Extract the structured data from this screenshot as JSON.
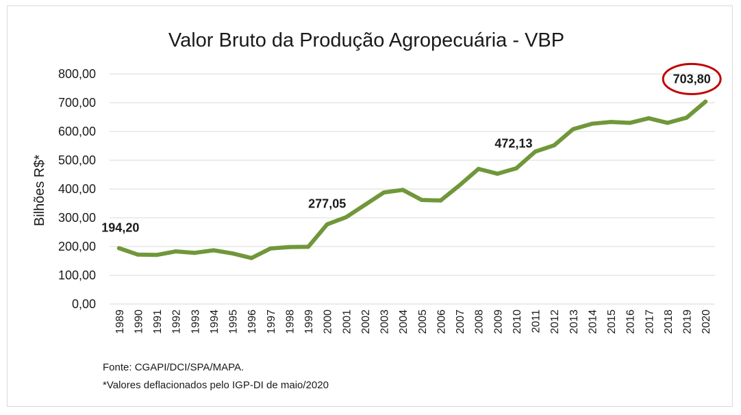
{
  "chart_data": {
    "type": "line",
    "title": "Valor Bruto da Produção Agropecuária - VBP",
    "ylabel": "Bilhões R$*",
    "xlabel": "",
    "ylim": [
      0,
      800
    ],
    "yticks": [
      "0,00",
      "100,00",
      "200,00",
      "300,00",
      "400,00",
      "500,00",
      "600,00",
      "700,00",
      "800,00"
    ],
    "ytick_values": [
      0,
      100,
      200,
      300,
      400,
      500,
      600,
      700,
      800
    ],
    "grid": true,
    "legend": "none",
    "line_color": "#70973a",
    "categories": [
      "1989",
      "1990",
      "1991",
      "1992",
      "1993",
      "1994",
      "1995",
      "1996",
      "1997",
      "1998",
      "1999",
      "2000",
      "2001",
      "2002",
      "2003",
      "2004",
      "2005",
      "2006",
      "2007",
      "2008",
      "2009",
      "2010",
      "2011",
      "2012",
      "2013",
      "2014",
      "2015",
      "2016",
      "2017",
      "2018",
      "2019",
      "2020"
    ],
    "series": [
      {
        "values": [
          194.2,
          172,
          171,
          183,
          178,
          187,
          176,
          160,
          193,
          198,
          199,
          277.05,
          302,
          345,
          388,
          397,
          362,
          360,
          413,
          470,
          453,
          472.13,
          530,
          552,
          608,
          627,
          633,
          630,
          646,
          630,
          648,
          703.8
        ]
      }
    ],
    "annotations": [
      {
        "category": "1989",
        "value": 194.2,
        "text": "194,20"
      },
      {
        "category": "2000",
        "value": 277.05,
        "text": "277,05"
      },
      {
        "category": "2010",
        "value": 472.13,
        "text": "472,13"
      },
      {
        "category": "2020",
        "value": 703.8,
        "text": "703,80",
        "highlight": true,
        "highlight_color": "#c00000"
      }
    ],
    "footnotes": [
      "Fonte: CGAPI/DCI/SPA/MAPA.",
      "*Valores deflacionados pelo IGP-DI de maio/2020"
    ]
  }
}
